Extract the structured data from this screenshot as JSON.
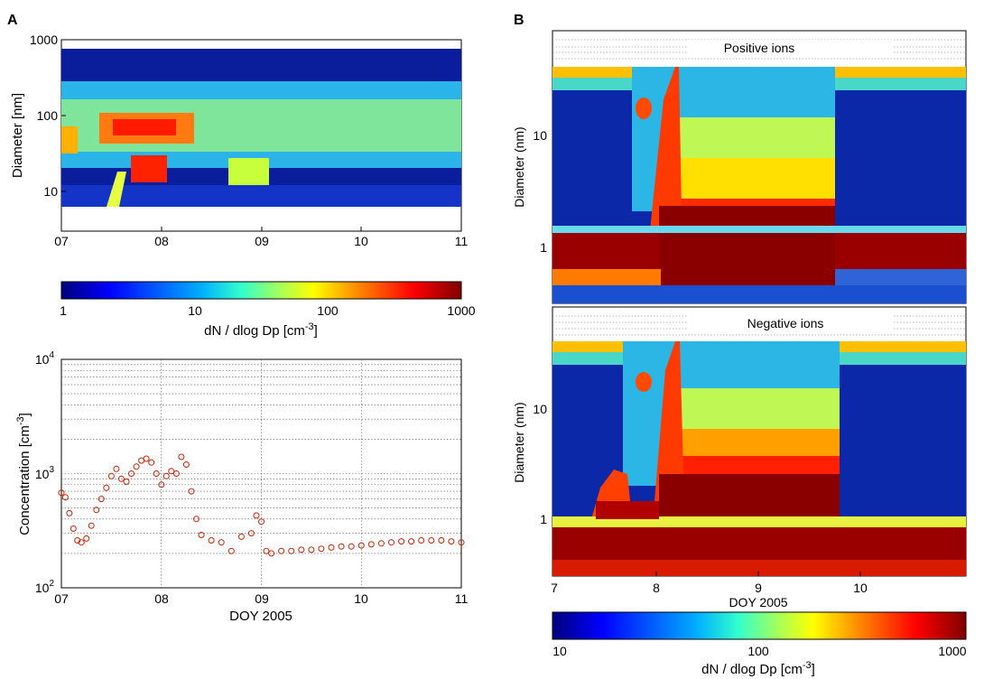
{
  "panel_labels": {
    "a": "A",
    "b": "B"
  },
  "colormap": [
    "#00007f",
    "#0000ff",
    "#00afff",
    "#33ffcc",
    "#aaff55",
    "#ffff00",
    "#ff8000",
    "#ff0000",
    "#7f0000"
  ],
  "marker_color": "#cc2200",
  "chart_data": [
    {
      "id": "A-top",
      "type": "heatmap",
      "xlabel": "",
      "ylabel": "Diameter [nm]",
      "xlim": [
        7,
        11
      ],
      "ylim": [
        5,
        1000
      ],
      "yscale": "log",
      "xticks": [
        "07",
        "08",
        "09",
        "10",
        "11"
      ],
      "yticks": [
        "10",
        "100",
        "1000"
      ],
      "value_range": [
        1,
        1000
      ],
      "description_bands": [
        {
          "x0": 7.0,
          "x1": 11.0,
          "d0": 6,
          "d1": 700,
          "value": 3
        },
        {
          "x0": 7.0,
          "x1": 11.0,
          "d0": 30,
          "d1": 300,
          "value": 40
        },
        {
          "x0": 7.3,
          "x1": 8.3,
          "d0": 40,
          "d1": 90,
          "value": 300
        },
        {
          "x0": 7.65,
          "x1": 7.95,
          "d0": 14,
          "d1": 25,
          "value": 400
        },
        {
          "x0": 8.75,
          "x1": 9.1,
          "d0": 13,
          "d1": 25,
          "value": 80
        }
      ]
    },
    {
      "id": "A-colorbar",
      "type": "heatmap",
      "label": "dN / dlog Dp [cm",
      "label_sup": "-3",
      "label_end": "]",
      "ticks": [
        "1",
        "10",
        "100",
        "1000"
      ]
    },
    {
      "id": "A-bottom",
      "type": "scatter",
      "xlabel": "DOY 2005",
      "ylabel": "Concentration [cm",
      "ylabel_sup": "-3",
      "ylabel_end": "]",
      "xlim": [
        7,
        11
      ],
      "ylim": [
        100,
        10000
      ],
      "yscale": "log",
      "xticks": [
        "07",
        "08",
        "09",
        "10",
        "11"
      ],
      "yticks": [
        {
          "base": "10",
          "exp": "2"
        },
        {
          "base": "10",
          "exp": "3"
        },
        {
          "base": "10",
          "exp": "4"
        }
      ],
      "grid": true,
      "x": [
        7.0,
        7.04,
        7.08,
        7.12,
        7.16,
        7.2,
        7.25,
        7.3,
        7.35,
        7.4,
        7.45,
        7.5,
        7.55,
        7.6,
        7.65,
        7.7,
        7.75,
        7.8,
        7.85,
        7.9,
        7.95,
        8.0,
        8.05,
        8.1,
        8.15,
        8.2,
        8.25,
        8.3,
        8.35,
        8.4,
        8.5,
        8.6,
        8.7,
        8.8,
        8.9,
        8.95,
        9.0,
        9.05,
        9.1,
        9.2,
        9.3,
        9.4,
        9.5,
        9.6,
        9.7,
        9.8,
        9.9,
        10.0,
        10.1,
        10.2,
        10.3,
        10.4,
        10.5,
        10.6,
        10.7,
        10.8,
        10.9,
        11.0
      ],
      "y": [
        680,
        620,
        450,
        330,
        260,
        250,
        270,
        350,
        480,
        600,
        750,
        950,
        1100,
        900,
        850,
        1000,
        1150,
        1300,
        1350,
        1250,
        1000,
        800,
        950,
        1050,
        1000,
        1400,
        1200,
        700,
        400,
        290,
        260,
        250,
        210,
        280,
        300,
        430,
        380,
        210,
        200,
        210,
        210,
        215,
        215,
        220,
        225,
        230,
        230,
        235,
        240,
        245,
        250,
        255,
        255,
        260,
        260,
        260,
        255,
        250
      ]
    },
    {
      "id": "B-positive",
      "type": "heatmap",
      "title": "Positive ions",
      "ylabel": "Diameter (nm)",
      "xlim": [
        7,
        10.9
      ],
      "ylim": [
        0.32,
        100
      ],
      "yscale": "log",
      "yticks": [
        "1",
        "10"
      ],
      "value_range": [
        10,
        1000
      ]
    },
    {
      "id": "B-negative",
      "type": "heatmap",
      "title": "Negative ions",
      "xlabel": "DOY 2005",
      "ylabel": "Diameter (nm)",
      "xlim": [
        7,
        10.9
      ],
      "ylim": [
        0.32,
        100
      ],
      "yscale": "log",
      "xticks": [
        "7",
        "8",
        "9",
        "10"
      ],
      "yticks": [
        "1",
        "10"
      ],
      "value_range": [
        10,
        1000
      ]
    },
    {
      "id": "B-colorbar",
      "type": "heatmap",
      "label": "dN / dlog Dp [cm",
      "label_sup": "-3",
      "label_end": "]",
      "ticks": [
        "10",
        "100",
        "1000"
      ]
    }
  ]
}
